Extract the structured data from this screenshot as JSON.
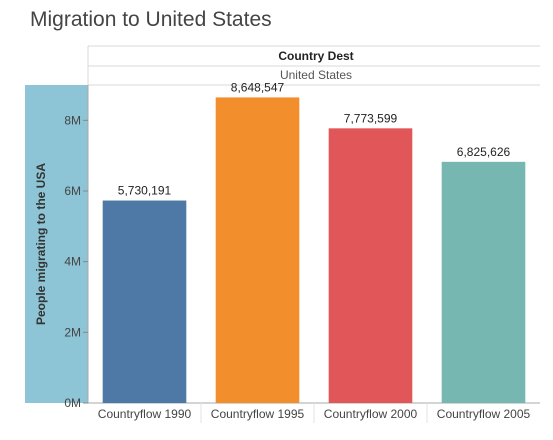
{
  "chart_data": {
    "type": "bar",
    "title": "Migration to United States",
    "column_header": "Country Dest",
    "column_value": "United States",
    "ylabel": "People migrating to the USA",
    "categories": [
      "Countryflow 1990",
      "Countryflow 1995",
      "Countryflow 2000",
      "Countryflow 2005"
    ],
    "values": [
      5730191,
      8648547,
      7773599,
      6825626
    ],
    "value_labels": [
      "5,730,191",
      "8,648,547",
      "7,773,599",
      "6,825,626"
    ],
    "colors": [
      "#4e79a7",
      "#f28e2b",
      "#e15759",
      "#76b7b2"
    ],
    "yticks": [
      0,
      2000000,
      4000000,
      6000000,
      8000000
    ],
    "ytick_labels": [
      "0M",
      "2M",
      "4M",
      "6M",
      "8M"
    ],
    "ylim": [
      0,
      9000000
    ],
    "grid": false,
    "ylabel_panel_color": "#8dc4d6"
  }
}
